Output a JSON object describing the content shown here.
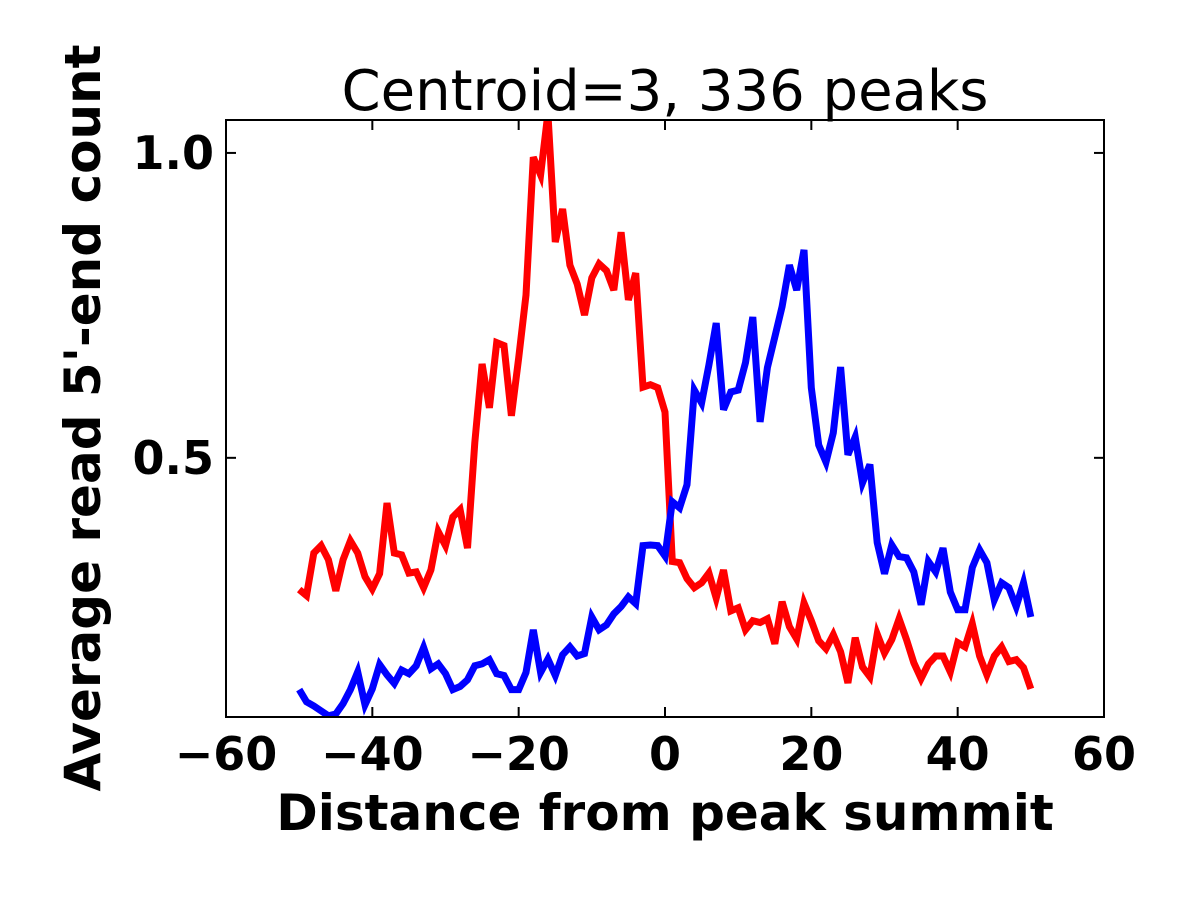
{
  "chart_data": {
    "type": "line",
    "title": "Centroid=3, 336 peaks",
    "xlabel": "Distance from peak summit",
    "ylabel": "Average read 5'-end count",
    "xlim": [
      -60,
      60
    ],
    "ylim": [
      0.075,
      1.054
    ],
    "xticks": [
      -60,
      -40,
      -20,
      0,
      20,
      40,
      60
    ],
    "xtick_labels": [
      "−60",
      "−40",
      "−20",
      "0",
      "20",
      "40",
      "60"
    ],
    "yticks": [
      0.5,
      1.0
    ],
    "ytick_labels": [
      "0.5",
      "1.0"
    ],
    "grid": false,
    "x_start": -50,
    "x_step": 1,
    "series": [
      {
        "name": "red",
        "color": "#ff0000",
        "values": [
          0.284,
          0.274,
          0.344,
          0.356,
          0.333,
          0.282,
          0.333,
          0.364,
          0.344,
          0.305,
          0.285,
          0.31,
          0.426,
          0.344,
          0.341,
          0.311,
          0.313,
          0.287,
          0.316,
          0.379,
          0.356,
          0.403,
          0.415,
          0.352,
          0.525,
          0.654,
          0.582,
          0.689,
          0.684,
          0.569,
          0.664,
          0.767,
          0.993,
          0.964,
          1.065,
          0.854,
          0.908,
          0.816,
          0.785,
          0.734,
          0.795,
          0.818,
          0.807,
          0.775,
          0.87,
          0.759,
          0.803,
          0.616,
          0.62,
          0.615,
          0.575,
          0.33,
          0.328,
          0.302,
          0.287,
          0.295,
          0.311,
          0.27,
          0.316,
          0.249,
          0.254,
          0.218,
          0.233,
          0.23,
          0.236,
          0.195,
          0.264,
          0.223,
          0.203,
          0.262,
          0.233,
          0.2,
          0.187,
          0.21,
          0.182,
          0.131,
          0.205,
          0.157,
          0.141,
          0.211,
          0.18,
          0.202,
          0.236,
          0.202,
          0.164,
          0.138,
          0.162,
          0.175,
          0.175,
          0.149,
          0.197,
          0.19,
          0.228,
          0.175,
          0.144,
          0.175,
          0.19,
          0.166,
          0.169,
          0.156,
          0.121
        ]
      },
      {
        "name": "blue",
        "color": "#0000ff",
        "values": [
          0.12,
          0.1,
          0.093,
          0.085,
          0.077,
          0.08,
          0.097,
          0.12,
          0.149,
          0.095,
          0.121,
          0.161,
          0.144,
          0.13,
          0.152,
          0.146,
          0.159,
          0.189,
          0.154,
          0.162,
          0.146,
          0.12,
          0.125,
          0.136,
          0.159,
          0.162,
          0.169,
          0.146,
          0.143,
          0.12,
          0.12,
          0.148,
          0.218,
          0.148,
          0.17,
          0.143,
          0.177,
          0.19,
          0.175,
          0.179,
          0.239,
          0.218,
          0.226,
          0.244,
          0.256,
          0.272,
          0.261,
          0.356,
          0.357,
          0.356,
          0.339,
          0.428,
          0.418,
          0.456,
          0.611,
          0.59,
          0.652,
          0.721,
          0.579,
          0.608,
          0.611,
          0.656,
          0.731,
          0.559,
          0.648,
          0.698,
          0.748,
          0.816,
          0.775,
          0.841,
          0.615,
          0.521,
          0.493,
          0.541,
          0.649,
          0.505,
          0.534,
          0.459,
          0.489,
          0.361,
          0.31,
          0.357,
          0.338,
          0.336,
          0.313,
          0.259,
          0.33,
          0.313,
          0.352,
          0.28,
          0.251,
          0.251,
          0.32,
          0.349,
          0.328,
          0.267,
          0.295,
          0.287,
          0.256,
          0.295,
          0.239
        ]
      }
    ]
  }
}
